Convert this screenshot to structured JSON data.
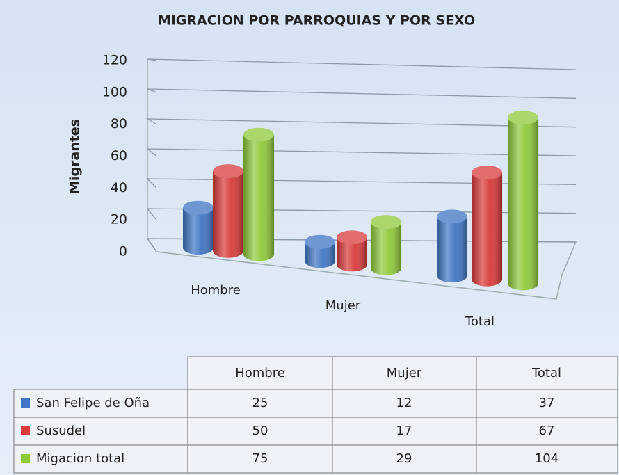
{
  "chart_data": {
    "type": "bar3d",
    "title": "MIGRACION POR PARROQUIAS Y POR SEXO",
    "y_label": "Migrantes",
    "categories": [
      "Hombre",
      "Mujer",
      "Total"
    ],
    "series": [
      {
        "name": "San Felipe de  Oña",
        "color": "#3f76c4",
        "values": [
          25,
          12,
          37
        ]
      },
      {
        "name": "Susudel",
        "color": "#d93a3a",
        "values": [
          50,
          17,
          67
        ]
      },
      {
        "name": "Migacion total",
        "color": "#8fc93a",
        "values": [
          75,
          29,
          104
        ]
      }
    ],
    "ylim": [
      0,
      120
    ],
    "yticks": [
      0,
      20,
      40,
      60,
      80,
      100,
      120
    ],
    "grid": true
  }
}
